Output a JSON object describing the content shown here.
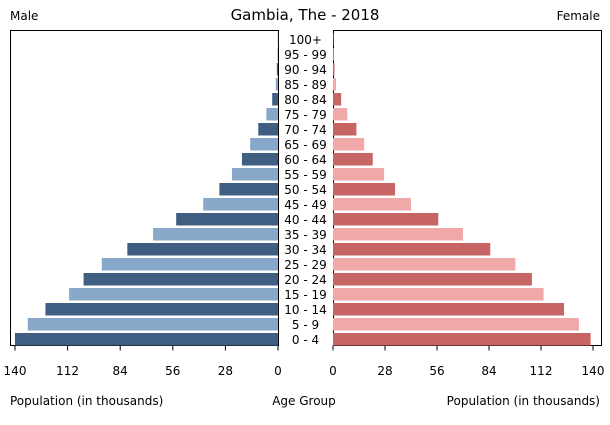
{
  "chart_data": {
    "type": "bar",
    "title": "Gambia, The - 2018",
    "left_label": "Male",
    "right_label": "Female",
    "xlabel_left": "Population (in thousands)",
    "xlabel_center": "Age Group",
    "xlabel_right": "Population (in thousands)",
    "xlim": [
      0,
      140
    ],
    "ticks": [
      0,
      28,
      56,
      84,
      112,
      140
    ],
    "categories": [
      "100+",
      "95 - 99",
      "90 - 94",
      "85 - 89",
      "80 - 84",
      "75 - 79",
      "70 - 74",
      "65 - 69",
      "60 - 64",
      "55 - 59",
      "50 - 54",
      "45 - 49",
      "40 - 44",
      "35 - 39",
      "30 - 34",
      "25 - 29",
      "20 - 24",
      "15 - 19",
      "10 - 14",
      "5 - 9",
      "0 - 4"
    ],
    "series": [
      {
        "name": "Male",
        "values": [
          0.1,
          0.3,
          0.6,
          1.2,
          3.1,
          6.2,
          10.5,
          14.8,
          19.2,
          24.5,
          31.2,
          39.8,
          54.2,
          66.5,
          80.2,
          93.8,
          103.5,
          111.2,
          123.8,
          133.2,
          140.0
        ]
      },
      {
        "name": "Female",
        "values": [
          0.1,
          0.4,
          0.8,
          1.6,
          4.4,
          7.7,
          12.6,
          16.8,
          21.4,
          27.5,
          33.4,
          42.0,
          56.7,
          70.0,
          84.7,
          98.2,
          107.1,
          113.4,
          124.4,
          132.4,
          138.7
        ]
      }
    ],
    "colors": {
      "male_dark": "#3f5e82",
      "male_light": "#87a8c9",
      "female_dark": "#c76464",
      "female_light": "#f1a8a8"
    },
    "grid": false
  }
}
